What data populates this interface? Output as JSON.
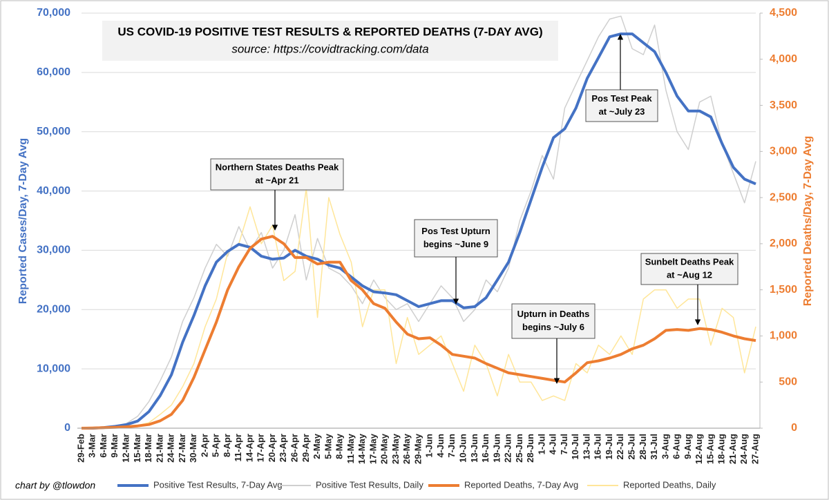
{
  "chart_data": {
    "type": "line",
    "title": "US COVID-19 POSITIVE TEST RESULTS & REPORTED DEATHS (7-DAY AVG)",
    "subtitle": "source: https://covidtracking.com/data",
    "y_label": "Reported Cases/Day, 7-Day Avg",
    "y2_label": "Reported Deaths/Day, 7-Day Avg",
    "credit": "chart by @tlowdon",
    "categories": [
      "29-Feb",
      "3-Mar",
      "6-Mar",
      "9-Mar",
      "12-Mar",
      "15-Mar",
      "18-Mar",
      "21-Mar",
      "24-Mar",
      "27-Mar",
      "30-Mar",
      "2-Apr",
      "5-Apr",
      "8-Apr",
      "11-Apr",
      "14-Apr",
      "17-Apr",
      "20-Apr",
      "23-Apr",
      "26-Apr",
      "29-Apr",
      "2-May",
      "5-May",
      "8-May",
      "11-May",
      "14-May",
      "17-May",
      "20-May",
      "23-May",
      "26-May",
      "29-May",
      "1-Jun",
      "4-Jun",
      "7-Jun",
      "10-Jun",
      "13-Jun",
      "16-Jun",
      "19-Jun",
      "22-Jun",
      "25-Jun",
      "28-Jun",
      "1-Jul",
      "4-Jul",
      "7-Jul",
      "10-Jul",
      "13-Jul",
      "16-Jul",
      "19-Jul",
      "22-Jul",
      "25-Jul",
      "28-Jul",
      "31-Jul",
      "3-Aug",
      "6-Aug",
      "9-Aug",
      "12-Aug",
      "15-Aug",
      "18-Aug",
      "21-Aug",
      "24-Aug",
      "27-Aug"
    ],
    "series": [
      {
        "name": "Positive Test Results, 7-Day Avg",
        "color": "#4472c4",
        "axis": "y",
        "values": [
          0,
          0,
          100,
          300,
          600,
          1200,
          2800,
          5500,
          9000,
          14500,
          19000,
          24000,
          28000,
          29800,
          31000,
          30500,
          29000,
          28500,
          28700,
          30000,
          29000,
          28500,
          27500,
          27000,
          25500,
          24000,
          23000,
          22800,
          22500,
          21500,
          20500,
          21000,
          21500,
          21500,
          20300,
          20500,
          22000,
          25000,
          28000,
          33000,
          38500,
          44000,
          49000,
          50500,
          54000,
          59000,
          62500,
          66000,
          66500,
          66500,
          65000,
          63500,
          60000,
          56000,
          53500,
          53500,
          52500,
          48000,
          44000,
          42000,
          41200
        ]
      },
      {
        "name": "Positive Test Results, Daily",
        "color": "#cfcfcf",
        "axis": "y",
        "values": [
          0,
          0,
          100,
          400,
          800,
          2000,
          4500,
          8000,
          12000,
          18000,
          22000,
          27000,
          31000,
          29000,
          34000,
          30000,
          33000,
          27000,
          30000,
          36000,
          25000,
          32000,
          27000,
          26000,
          24000,
          21000,
          25000,
          22000,
          20000,
          21000,
          18000,
          21000,
          24000,
          22000,
          18000,
          20000,
          25000,
          23000,
          27000,
          35000,
          40000,
          46000,
          42000,
          54000,
          58000,
          62000,
          66000,
          69000,
          69500,
          64000,
          63000,
          68000,
          57000,
          50000,
          47000,
          55000,
          56000,
          48000,
          43000,
          38000,
          45000
        ]
      },
      {
        "name": "Reported Deaths, 7-Day Avg",
        "color": "#ed7d31",
        "axis": "y2",
        "values": [
          0,
          2,
          5,
          10,
          15,
          25,
          40,
          80,
          150,
          300,
          550,
          850,
          1150,
          1500,
          1750,
          1950,
          2050,
          2080,
          2000,
          1850,
          1850,
          1780,
          1800,
          1800,
          1600,
          1500,
          1350,
          1300,
          1150,
          1020,
          970,
          980,
          900,
          800,
          780,
          760,
          700,
          650,
          600,
          580,
          560,
          540,
          520,
          500,
          600,
          710,
          730,
          760,
          800,
          860,
          900,
          970,
          1060,
          1070,
          1060,
          1080,
          1070,
          1040,
          1000,
          970,
          950
        ]
      },
      {
        "name": "Reported Deaths, Daily",
        "color": "#ffe699",
        "axis": "y2",
        "values": [
          0,
          0,
          5,
          10,
          20,
          30,
          60,
          150,
          250,
          450,
          700,
          1100,
          1400,
          1900,
          2000,
          2400,
          2000,
          2200,
          1600,
          1700,
          2600,
          1200,
          2500,
          2100,
          1800,
          1100,
          1500,
          1500,
          700,
          1200,
          800,
          900,
          1000,
          700,
          400,
          900,
          700,
          350,
          800,
          500,
          500,
          300,
          350,
          300,
          700,
          600,
          900,
          800,
          1000,
          800,
          1400,
          1500,
          1500,
          1300,
          1400,
          1400,
          900,
          1300,
          1200,
          600,
          1100
        ]
      }
    ],
    "ylim": [
      0,
      70000
    ],
    "yticks": [
      0,
      {
        "value": 10000,
        "label": "10,000"
      },
      {
        "value": 20000,
        "label": "20,000"
      },
      {
        "value": 30000,
        "label": "30,000"
      },
      {
        "value": 40000,
        "label": "40,000"
      },
      {
        "value": 50000,
        "label": "50,000"
      },
      {
        "value": 60000,
        "label": "60,000"
      },
      {
        "value": 70000,
        "label": "70,000"
      }
    ],
    "y2lim": [
      0,
      4500
    ],
    "y2ticks": [
      0,
      500,
      {
        "value": 1000,
        "label": "1,000"
      },
      {
        "value": 1500,
        "label": "1,500"
      },
      {
        "value": 2000,
        "label": "2,000"
      },
      {
        "value": 2500,
        "label": "2,500"
      },
      {
        "value": 3000,
        "label": "3,000"
      },
      {
        "value": 3500,
        "label": "3,500"
      },
      {
        "value": 4000,
        "label": "4,000"
      },
      {
        "value": 4500,
        "label": "4,500"
      }
    ],
    "grid": true,
    "legend": "bottom",
    "annotations": [
      {
        "lines": [
          "Northern States Deaths Peak",
          "at ~Apr 21"
        ]
      },
      {
        "lines": [
          "Pos Test Upturn",
          "begins ~June 9"
        ]
      },
      {
        "lines": [
          "Pos Test Peak",
          "at ~July 23"
        ]
      },
      {
        "lines": [
          "Sunbelt Deaths Peak",
          "at ~Aug 12"
        ]
      },
      {
        "lines": [
          "Upturn in Deaths",
          "begins ~July 6"
        ]
      }
    ]
  }
}
